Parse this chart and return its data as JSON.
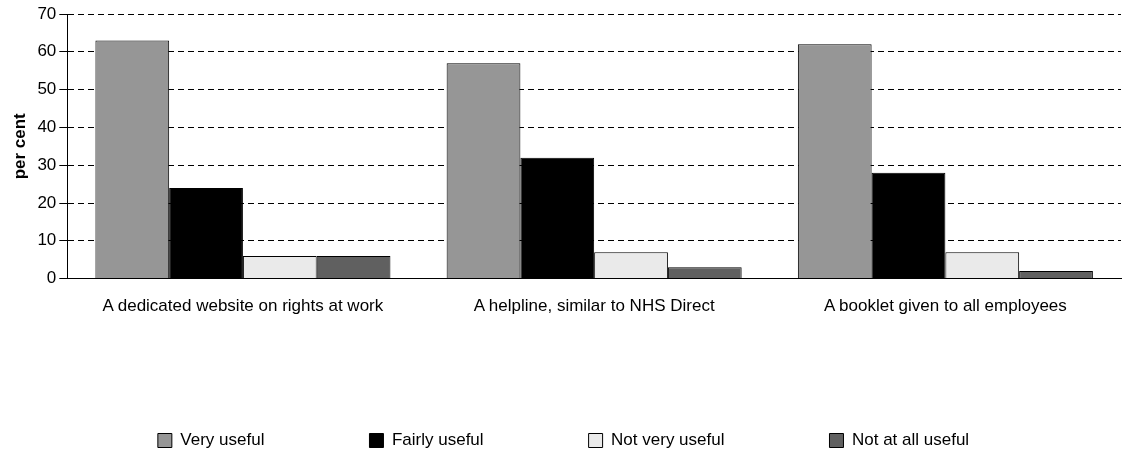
{
  "chart_data": {
    "type": "bar",
    "ylabel": "per cent",
    "categories": [
      "A dedicated website on rights at work",
      "A helpline, similar to NHS Direct",
      "A booklet given to all employees"
    ],
    "series": [
      {
        "name": "Very useful",
        "color": "#969696",
        "values": [
          63,
          57,
          62
        ]
      },
      {
        "name": "Fairly useful",
        "color": "#000000",
        "values": [
          24,
          32,
          28
        ]
      },
      {
        "name": "Not very useful",
        "color": "#eaeaea",
        "values": [
          6,
          7,
          7
        ]
      },
      {
        "name": "Not at all useful",
        "color": "#606060",
        "values": [
          6,
          3,
          2
        ]
      }
    ],
    "ylim": [
      0,
      70
    ],
    "yticks": [
      0,
      10,
      20,
      30,
      40,
      50,
      60,
      70
    ],
    "grid": "y",
    "line_style": "dashed",
    "legend": "bottom"
  }
}
